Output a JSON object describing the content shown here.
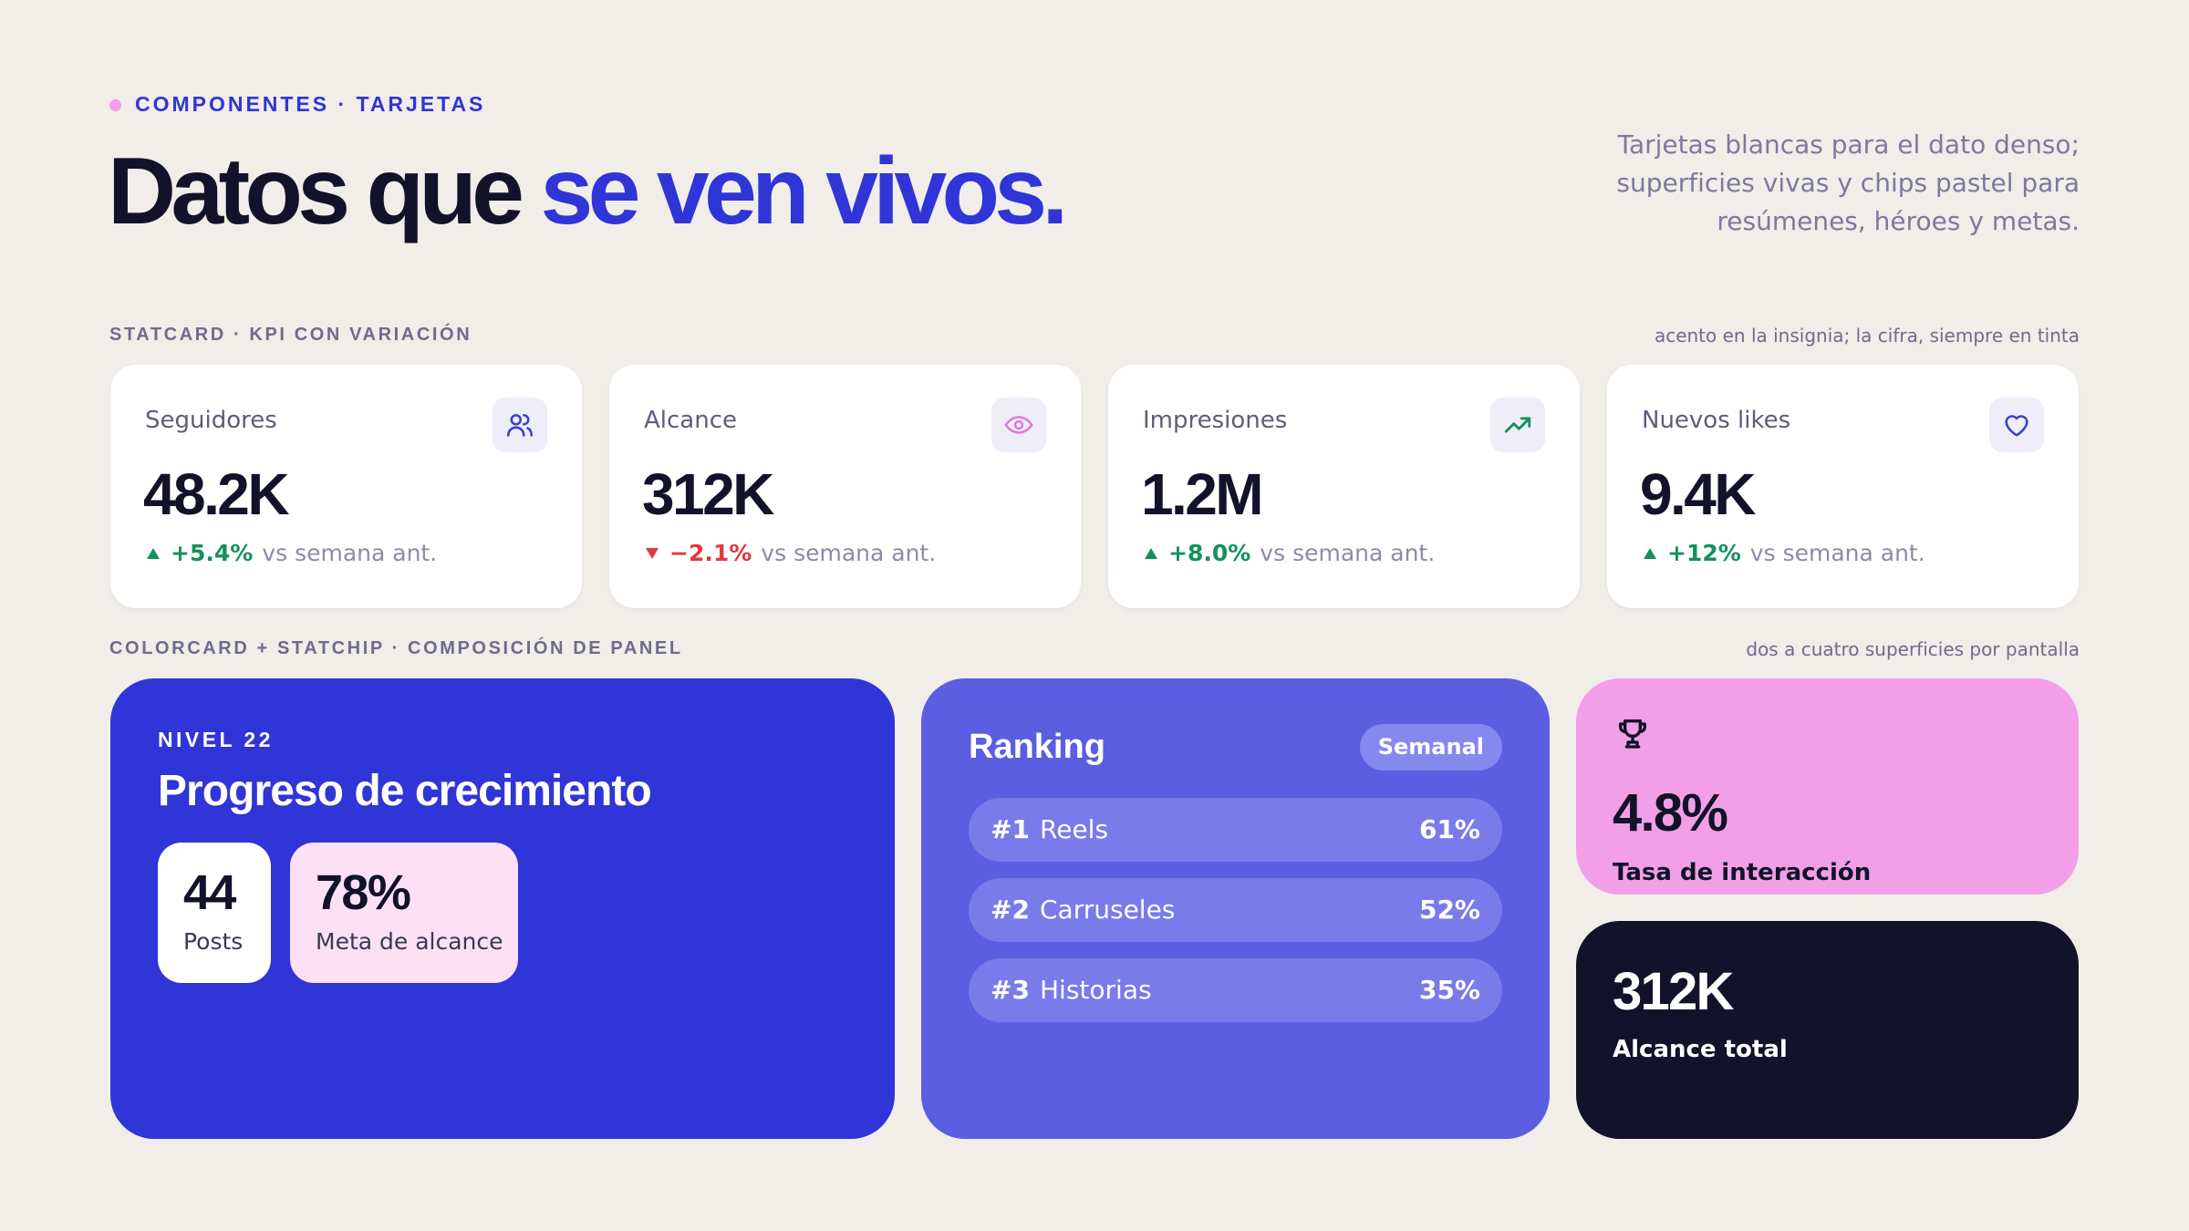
{
  "header": {
    "eyebrow": "COMPONENTES · TARJETAS",
    "title_ink": "Datos que",
    "title_accent": "se ven vivos.",
    "description_lines": [
      "Tarjetas blancas para el dato denso;",
      "superficies vivas y chips pastel para",
      "resúmenes, héroes y metas."
    ]
  },
  "statcard_section": {
    "label": "STATCARD · KPI CON VARIACIÓN",
    "note": "acento en la insignia; la cifra, siempre en tinta",
    "cards": [
      {
        "label": "Seguidores",
        "value": "48.2K",
        "change": "+5.4%",
        "trend": "up",
        "comparison": "vs semana ant."
      },
      {
        "label": "Alcance",
        "value": "312K",
        "change": "−2.1%",
        "trend": "down",
        "comparison": "vs semana ant."
      },
      {
        "label": "Impresiones",
        "value": "1.2M",
        "change": "+8.0%",
        "trend": "up",
        "comparison": "vs semana ant."
      },
      {
        "label": "Nuevos likes",
        "value": "9.4K",
        "change": "+12%",
        "trend": "up",
        "comparison": "vs semana ant."
      }
    ]
  },
  "panel_section": {
    "label": "COLORCARD + STATCHIP · COMPOSICIÓN DE PANEL",
    "note": "dos a cuatro superficies por pantalla",
    "progress": {
      "eyebrow": "NIVEL 22",
      "title": "Progreso de crecimiento",
      "chips": [
        {
          "value": "44",
          "label": "Posts"
        },
        {
          "value": "78%",
          "label": "Meta de alcance"
        }
      ]
    },
    "ranking": {
      "title": "Ranking",
      "badge": "Semanal",
      "items": [
        {
          "rank": "#1",
          "name": "Reels",
          "value": "61%"
        },
        {
          "rank": "#2",
          "name": "Carruseles",
          "value": "52%"
        },
        {
          "rank": "#3",
          "name": "Historias",
          "value": "35%"
        }
      ]
    },
    "interaction": {
      "value": "4.8%",
      "label": "Tasa de interacción"
    },
    "reach": {
      "value": "312K",
      "label": "Alcance total"
    }
  }
}
